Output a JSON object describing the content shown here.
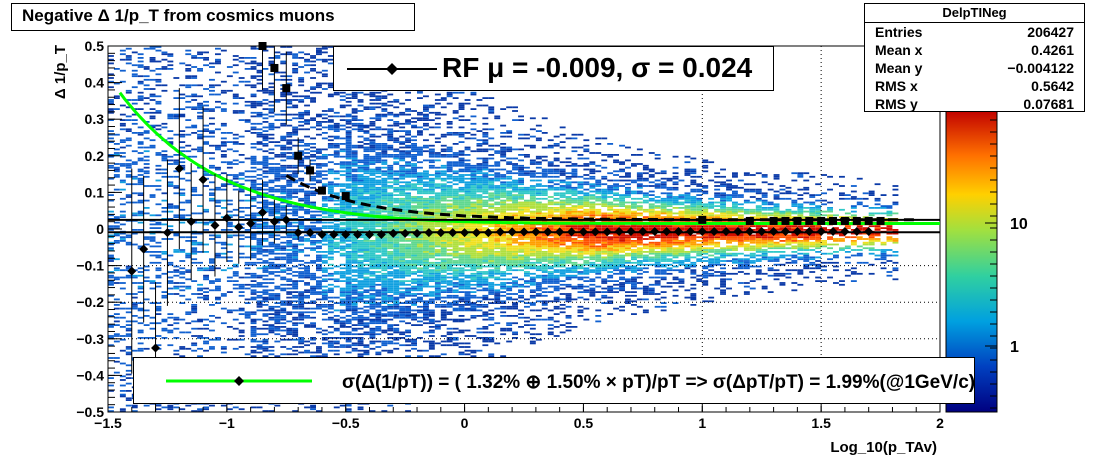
{
  "chart_data": {
    "type": "heatmap",
    "title": "Negative Δ 1/p_T from cosmics muons",
    "xlabel": "Log_10(p_TAv)",
    "ylabel": "Δ 1/p_T",
    "xlim": [
      -1.5,
      2.0
    ],
    "ylim": [
      -0.5,
      0.5
    ],
    "x_ticks": [
      "−1.5",
      "−1",
      "−0.5",
      "0",
      "0.5",
      "1",
      "1.5",
      "2"
    ],
    "y_ticks": [
      "0.5",
      "0.4",
      "0.3",
      "0.2",
      "0.1",
      "0",
      "−0.1",
      "−0.2",
      "−0.3",
      "−0.4",
      "−0.5"
    ],
    "colorbar_ticks": [
      "10",
      "1"
    ],
    "colorbar_log": true,
    "stats": {
      "name": "DelpTINeg",
      "entries_label": "Entries",
      "entries": "206427",
      "meanx_label": "Mean x",
      "meanx": "0.4261",
      "meany_label": "Mean y",
      "meany": "−0.004122",
      "rmsx_label": "RMS x",
      "rmsx": "0.5642",
      "rmsy_label": "RMS y",
      "rmsy": "0.07681"
    },
    "fit_label": "RF μ = -0.009, σ =   0.024",
    "resolution_label": "σ(Δ(1/pT)) = ( 1.32% ⊕  1.50% × pT)/pT => σ(ΔpT/pT) =  1.99%(@1GeV/c)",
    "series": [
      {
        "kind": "profile_mean",
        "x": [
          -1.4,
          -1.35,
          -1.3,
          -1.25,
          -1.2,
          -1.15,
          -1.1,
          -1.05,
          -1.0,
          -0.95,
          -0.9,
          -0.85,
          -0.8,
          -0.75,
          -0.7,
          -0.65,
          -0.6,
          -0.55,
          -0.5,
          -0.45,
          -0.4,
          -0.35,
          -0.3,
          -0.25,
          -0.2,
          -0.15,
          -0.1,
          -0.05,
          0.0,
          0.05,
          0.1,
          0.15,
          0.2,
          0.25,
          0.3,
          0.35,
          0.4,
          0.45,
          0.5,
          0.55,
          0.6,
          0.65,
          0.7,
          0.75,
          0.8,
          0.85,
          0.9,
          0.95,
          1.0,
          1.05,
          1.1,
          1.15,
          1.2,
          1.25,
          1.3,
          1.35,
          1.4,
          1.45,
          1.5,
          1.55,
          1.6,
          1.65,
          1.7
        ],
        "y": [
          -0.115,
          -0.055,
          -0.325,
          -0.01,
          0.165,
          0.02,
          0.135,
          0.01,
          0.03,
          0.005,
          0.015,
          0.045,
          0.02,
          0.025,
          -0.01,
          -0.01,
          -0.015,
          -0.015,
          -0.015,
          -0.015,
          -0.015,
          -0.015,
          -0.012,
          -0.012,
          -0.012,
          -0.01,
          -0.01,
          -0.01,
          -0.01,
          -0.01,
          -0.01,
          -0.008,
          -0.008,
          -0.008,
          -0.008,
          -0.008,
          -0.008,
          -0.008,
          -0.008,
          -0.008,
          -0.008,
          -0.007,
          -0.007,
          -0.007,
          -0.007,
          -0.007,
          -0.007,
          -0.007,
          -0.007,
          -0.007,
          -0.007,
          -0.007,
          -0.007,
          -0.007,
          -0.007,
          -0.007,
          -0.007,
          -0.007,
          -0.007,
          -0.007,
          -0.007,
          -0.007,
          -0.007
        ],
        "err": [
          0.28,
          0.2,
          0.18,
          0.2,
          0.22,
          0.16,
          0.2,
          0.14,
          0.12,
          0.1,
          0.1,
          0.09,
          0.06,
          0.04,
          0.02,
          0.01,
          0.008,
          0.007,
          0.006,
          0.005,
          0.005,
          0.004,
          0.004,
          0.004,
          0.003,
          0.003,
          0.003,
          0.003,
          0.003,
          0.003,
          0.003,
          0.003,
          0.003,
          0.003,
          0.003,
          0.003,
          0.003,
          0.003,
          0.003,
          0.003,
          0.003,
          0.003,
          0.003,
          0.003,
          0.003,
          0.003,
          0.003,
          0.003,
          0.003,
          0.003,
          0.003,
          0.003,
          0.003,
          0.003,
          0.003,
          0.003,
          0.003,
          0.003,
          0.003,
          0.003,
          0.003,
          0.004,
          0.004
        ]
      },
      {
        "kind": "profile_rms",
        "x": [
          -0.85,
          -0.8,
          -0.75,
          -0.7,
          -0.65,
          -0.6,
          -0.5,
          1.0,
          1.2,
          1.3,
          1.35,
          1.4,
          1.45,
          1.5,
          1.55,
          1.6,
          1.65,
          1.7,
          1.75,
          1.8,
          1.85,
          1.9,
          1.95
        ],
        "y": [
          0.5,
          0.44,
          0.385,
          0.2,
          0.16,
          0.105,
          0.09,
          0.025,
          0.022,
          0.022,
          0.022,
          0.022,
          0.022,
          0.022,
          0.022,
          0.022,
          0.022,
          0.022,
          0.022,
          0.0,
          0.0,
          0.0,
          0.0
        ],
        "err": [
          0.12,
          0.12,
          0.1,
          0.05,
          0.03,
          0.01,
          0.005,
          0.002,
          0.002,
          0.002,
          0.002,
          0.002,
          0.002,
          0.002,
          0.002,
          0.002,
          0.002,
          0.002,
          0.002,
          0.0,
          0.0,
          0.0,
          0.0
        ]
      },
      {
        "kind": "fit_curve",
        "color": "#00ff00",
        "sigma_a": 0.0132,
        "sigma_b": 0.015,
        "x_range": [
          -1.45,
          2.0
        ]
      }
    ],
    "mean_line_y": -0.009,
    "ref_line_y": 0.025
  }
}
